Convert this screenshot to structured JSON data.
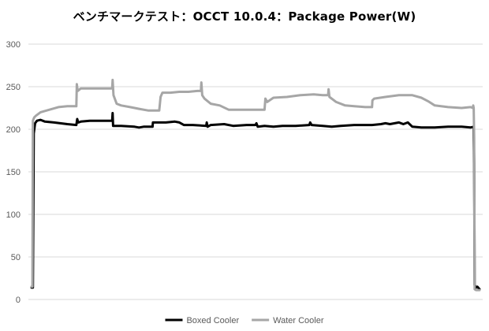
{
  "chart_data": {
    "type": "line",
    "title": "ベンチマークテスト：OCCT 10.0.4：Package Power(W)",
    "xlabel": "",
    "ylabel": "",
    "ylim": [
      0,
      300
    ],
    "yticks": [
      0,
      50,
      100,
      150,
      200,
      250,
      300
    ],
    "xlim": [
      0,
      1000
    ],
    "grid": "horizontal",
    "legend": "bottom",
    "series": [
      {
        "name": "Boxed Cooler",
        "color": "#000000",
        "points": [
          [
            0,
            14
          ],
          [
            3,
            14
          ],
          [
            5,
            195
          ],
          [
            8,
            207
          ],
          [
            12,
            210
          ],
          [
            20,
            211
          ],
          [
            30,
            209
          ],
          [
            50,
            208
          ],
          [
            80,
            206
          ],
          [
            100,
            205
          ],
          [
            102,
            212
          ],
          [
            104,
            208
          ],
          [
            110,
            209
          ],
          [
            130,
            210
          ],
          [
            150,
            210
          ],
          [
            175,
            210
          ],
          [
            180,
            210
          ],
          [
            181,
            219
          ],
          [
            182,
            204
          ],
          [
            200,
            204
          ],
          [
            230,
            203
          ],
          [
            240,
            202
          ],
          [
            250,
            203
          ],
          [
            270,
            203
          ],
          [
            271,
            208
          ],
          [
            300,
            208
          ],
          [
            320,
            209
          ],
          [
            330,
            208
          ],
          [
            340,
            205
          ],
          [
            360,
            205
          ],
          [
            390,
            204
          ],
          [
            391,
            208
          ],
          [
            393,
            203
          ],
          [
            400,
            205
          ],
          [
            430,
            206
          ],
          [
            450,
            204
          ],
          [
            480,
            205
          ],
          [
            500,
            205
          ],
          [
            502,
            207
          ],
          [
            505,
            203
          ],
          [
            520,
            204
          ],
          [
            540,
            203
          ],
          [
            560,
            204
          ],
          [
            590,
            204
          ],
          [
            620,
            205
          ],
          [
            622,
            208
          ],
          [
            625,
            205
          ],
          [
            650,
            204
          ],
          [
            670,
            203
          ],
          [
            690,
            204
          ],
          [
            720,
            205
          ],
          [
            760,
            205
          ],
          [
            780,
            206
          ],
          [
            790,
            207
          ],
          [
            800,
            206
          ],
          [
            820,
            208
          ],
          [
            830,
            206
          ],
          [
            840,
            208
          ],
          [
            850,
            203
          ],
          [
            870,
            202
          ],
          [
            900,
            202
          ],
          [
            930,
            203
          ],
          [
            960,
            203
          ],
          [
            980,
            202
          ],
          [
            987,
            203
          ],
          [
            988,
            160
          ],
          [
            989,
            17
          ],
          [
            992,
            14
          ],
          [
            995,
            15
          ],
          [
            1000,
            12
          ]
        ]
      },
      {
        "name": "Water Cooler",
        "color": "#a6a6a6",
        "points": [
          [
            0,
            15
          ],
          [
            2,
            15
          ],
          [
            3,
            210
          ],
          [
            6,
            214
          ],
          [
            10,
            216
          ],
          [
            20,
            220
          ],
          [
            40,
            223
          ],
          [
            60,
            226
          ],
          [
            80,
            227
          ],
          [
            100,
            227
          ],
          [
            101,
            253
          ],
          [
            103,
            245
          ],
          [
            110,
            248
          ],
          [
            130,
            248
          ],
          [
            150,
            248
          ],
          [
            175,
            248
          ],
          [
            180,
            248
          ],
          [
            181,
            258
          ],
          [
            183,
            240
          ],
          [
            190,
            230
          ],
          [
            200,
            228
          ],
          [
            220,
            226
          ],
          [
            240,
            224
          ],
          [
            260,
            222
          ],
          [
            285,
            222
          ],
          [
            288,
            238
          ],
          [
            292,
            243
          ],
          [
            310,
            243
          ],
          [
            330,
            244
          ],
          [
            350,
            244
          ],
          [
            370,
            245
          ],
          [
            378,
            245
          ],
          [
            379,
            255
          ],
          [
            381,
            240
          ],
          [
            386,
            236
          ],
          [
            400,
            230
          ],
          [
            420,
            228
          ],
          [
            440,
            223
          ],
          [
            480,
            223
          ],
          [
            520,
            223
          ],
          [
            522,
            236
          ],
          [
            526,
            232
          ],
          [
            540,
            237
          ],
          [
            570,
            238
          ],
          [
            600,
            240
          ],
          [
            630,
            241
          ],
          [
            650,
            240
          ],
          [
            662,
            240
          ],
          [
            663,
            247
          ],
          [
            665,
            238
          ],
          [
            680,
            232
          ],
          [
            700,
            228
          ],
          [
            720,
            227
          ],
          [
            745,
            226
          ],
          [
            760,
            226
          ],
          [
            761,
            234
          ],
          [
            765,
            236
          ],
          [
            790,
            238
          ],
          [
            820,
            240
          ],
          [
            850,
            240
          ],
          [
            870,
            237
          ],
          [
            885,
            233
          ],
          [
            900,
            228
          ],
          [
            930,
            226
          ],
          [
            960,
            225
          ],
          [
            980,
            226
          ],
          [
            985,
            225
          ],
          [
            986,
            228
          ],
          [
            987,
            225
          ],
          [
            988,
            190
          ],
          [
            989,
            12
          ],
          [
            992,
            11
          ],
          [
            1000,
            11
          ]
        ]
      }
    ]
  }
}
